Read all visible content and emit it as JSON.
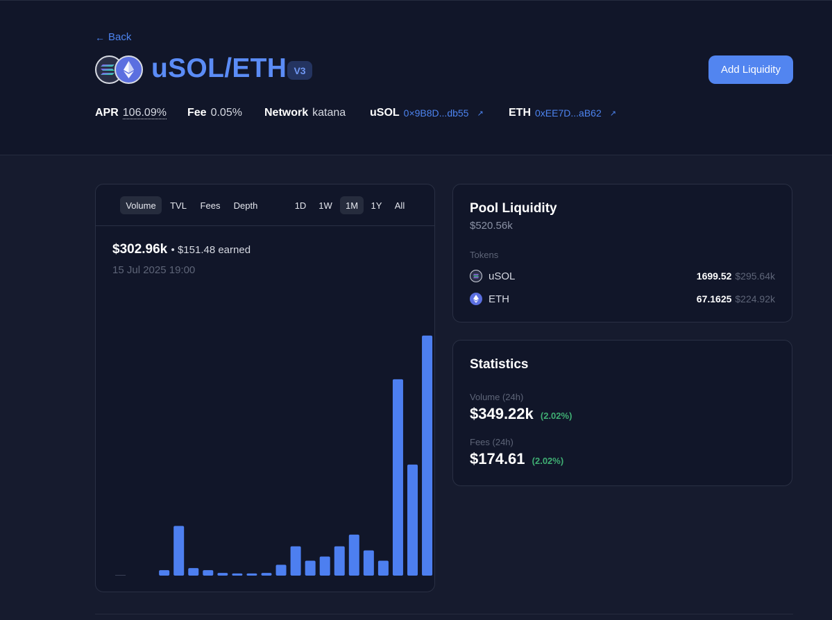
{
  "header": {
    "back_label": "Back",
    "pool_title": "uSOL/ETH",
    "version_badge": "V3",
    "add_liquidity_label": "Add Liquidity",
    "apr": {
      "label": "APR",
      "value": "106.09%"
    },
    "fee": {
      "label": "Fee",
      "value": "0.05%"
    },
    "network": {
      "label": "Network",
      "value": "katana"
    },
    "token0": {
      "label": "uSOL",
      "address": "0×9B8D...db55"
    },
    "token1": {
      "label": "ETH",
      "address": "0xEE7D...aB62"
    },
    "token_icons": [
      "solana-token-icon",
      "ethereum-token-icon"
    ]
  },
  "chart_panel": {
    "metric_tabs": [
      "Volume",
      "TVL",
      "Fees",
      "Depth"
    ],
    "active_metric": "Volume",
    "range_tabs": [
      "1D",
      "1W",
      "1M",
      "1Y",
      "All"
    ],
    "active_range": "1M",
    "value": "$302.96k",
    "earned": "• $151.48 earned",
    "date": "15 Jul 2025 19:00"
  },
  "chart_data": {
    "type": "bar",
    "title": "",
    "xlabel": "",
    "ylabel": "",
    "values": [
      0,
      0,
      0,
      2.8,
      25.6,
      3.9,
      2.8,
      1.4,
      1.1,
      1.1,
      1.4,
      5.6,
      15.1,
      7.7,
      9.8,
      15.1,
      21.1,
      13.0,
      7.7,
      101.1,
      57.2,
      123.6
    ],
    "ylim": [
      0,
      125
    ],
    "grid": false,
    "bar_color": "#4d7ff0"
  },
  "liquidity": {
    "title": "Pool Liquidity",
    "total": "$520.56k",
    "tokens_label": "Tokens",
    "tokens": [
      {
        "name": "uSOL",
        "amount": "1699.52",
        "usd": "$295.64k",
        "icon": "solana-token-icon"
      },
      {
        "name": "ETH",
        "amount": "67.1625",
        "usd": "$224.92k",
        "icon": "ethereum-token-icon"
      }
    ]
  },
  "statistics": {
    "title": "Statistics",
    "volume_label": "Volume (24h)",
    "volume_value": "$349.22k",
    "volume_change": "(2.02%)",
    "fees_label": "Fees (24h)",
    "fees_value": "$174.61",
    "fees_change": "(2.02%)"
  },
  "colors": {
    "background": "#161b2e",
    "header_bg": "#111629",
    "accent": "#5285f0",
    "positive": "#3fae73"
  }
}
